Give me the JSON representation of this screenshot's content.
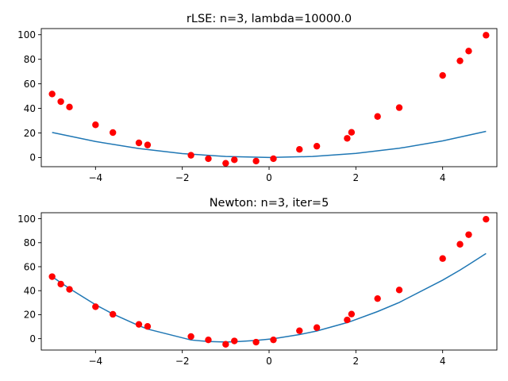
{
  "chart_data": [
    {
      "type": "scatter+line",
      "title": "rLSE: n=3, lambda=10000.0",
      "xlim": [
        -5.25,
        5.25
      ],
      "ylim": [
        -7.5,
        105
      ],
      "xticks": [
        -4,
        -2,
        0,
        2,
        4
      ],
      "yticks": [
        0,
        20,
        40,
        60,
        80,
        100
      ],
      "grid": false,
      "point_color": "#ff0000",
      "line_color": "#1f77b4",
      "points": {
        "x": [
          -5.0,
          -4.8,
          -4.6,
          -4.0,
          -3.6,
          -3.0,
          -2.8,
          -1.8,
          -1.4,
          -1.0,
          -0.8,
          -0.3,
          0.1,
          0.7,
          1.1,
          1.8,
          1.9,
          2.5,
          3.0,
          4.0,
          4.4,
          4.6,
          5.0
        ],
        "y": [
          51.7,
          45.5,
          41.1,
          26.6,
          20.3,
          11.9,
          10.2,
          1.8,
          -1.0,
          -4.7,
          -1.9,
          -2.9,
          -1.0,
          6.6,
          9.2,
          15.6,
          20.5,
          33.4,
          40.6,
          66.8,
          78.7,
          86.7,
          99.6
        ]
      },
      "fit": {
        "x": [
          -5.0,
          -4.0,
          -3.0,
          -2.0,
          -1.0,
          0.0,
          1.0,
          2.0,
          3.0,
          4.0,
          5.0
        ],
        "y": [
          20.4,
          13.0,
          7.3,
          3.2,
          0.8,
          0.0,
          0.8,
          3.3,
          7.5,
          13.5,
          21.3
        ]
      }
    },
    {
      "type": "scatter+line",
      "title": "Newton: n=3, iter=5",
      "xlim": [
        -5.25,
        5.25
      ],
      "ylim": [
        -9.5,
        105
      ],
      "xticks": [
        -4,
        -2,
        0,
        2,
        4
      ],
      "yticks": [
        0,
        20,
        40,
        60,
        80,
        100
      ],
      "grid": false,
      "point_color": "#ff0000",
      "line_color": "#1f77b4",
      "points": {
        "x": [
          -5.0,
          -4.8,
          -4.6,
          -4.0,
          -3.6,
          -3.0,
          -2.8,
          -1.8,
          -1.4,
          -1.0,
          -0.8,
          -0.3,
          0.1,
          0.7,
          1.1,
          1.8,
          1.9,
          2.5,
          3.0,
          4.0,
          4.4,
          4.6,
          5.0
        ],
        "y": [
          51.7,
          45.5,
          41.1,
          26.6,
          20.3,
          11.9,
          10.2,
          1.8,
          -1.0,
          -4.7,
          -1.9,
          -2.9,
          -1.0,
          6.6,
          9.2,
          15.6,
          20.5,
          33.4,
          40.6,
          66.8,
          78.7,
          86.7,
          99.6
        ]
      },
      "fit": {
        "x": [
          -5.0,
          -4.8,
          -4.6,
          -4.0,
          -3.6,
          -3.0,
          -2.8,
          -1.8,
          -1.4,
          -1.0,
          -0.8,
          -0.3,
          0.1,
          0.7,
          1.1,
          1.8,
          1.9,
          2.5,
          3.0,
          4.0,
          4.4,
          4.6,
          5.0
        ],
        "y": [
          51.7,
          46.7,
          41.8,
          28.3,
          20.6,
          10.8,
          8.0,
          -1.1,
          -2.4,
          -2.8,
          -2.6,
          -1.5,
          -0.1,
          3.4,
          6.4,
          13.4,
          14.6,
          22.6,
          30.2,
          48.8,
          57.2,
          61.7,
          71.0
        ]
      }
    }
  ]
}
